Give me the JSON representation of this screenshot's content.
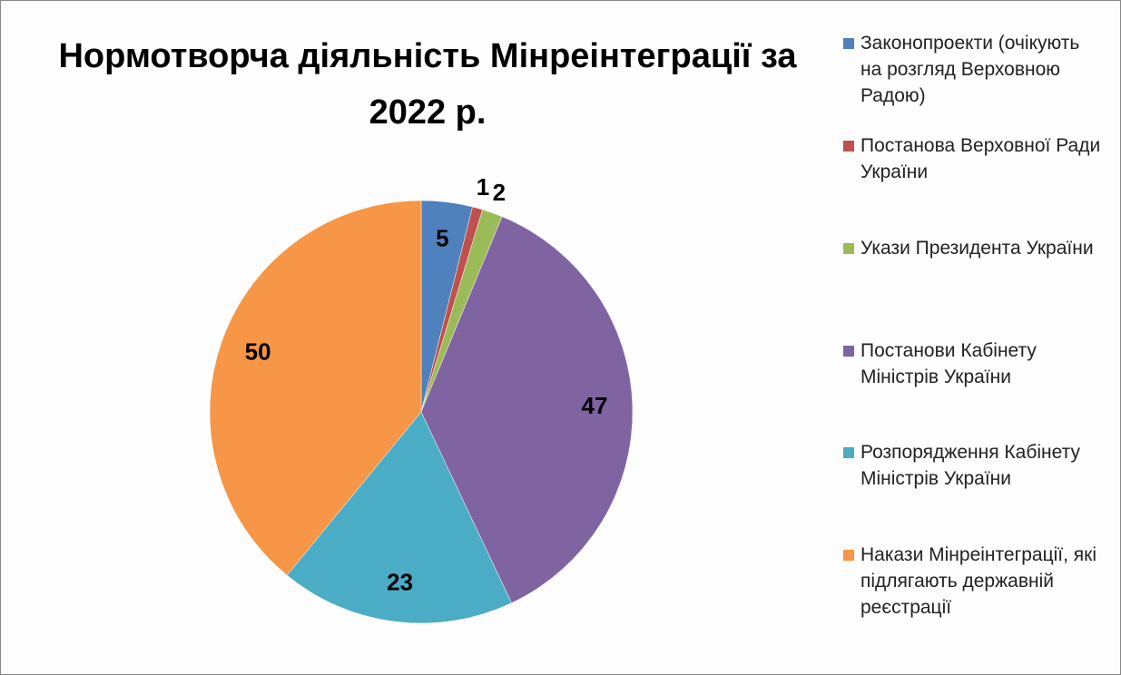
{
  "chart_data": {
    "type": "pie",
    "title": "Нормотворча діяльність Мінреінтеграції за 2022 р.",
    "categories": [
      "Законопроекти (очікують на розгляд Верховною Радою)",
      "Постанова Верховної Ради України",
      "Укази Президента України",
      "Постанови Кабінету Міністрів України",
      "Розпорядження Кабінету Міністрів України",
      "Накази Мінреінтеграції, які підлягають державній реєстрації"
    ],
    "values": [
      5,
      1,
      2,
      47,
      23,
      50
    ],
    "colors": [
      "#4F81BD",
      "#C0504D",
      "#9BBB59",
      "#8064A2",
      "#4BACC6",
      "#F79646"
    ],
    "legend": "right"
  }
}
